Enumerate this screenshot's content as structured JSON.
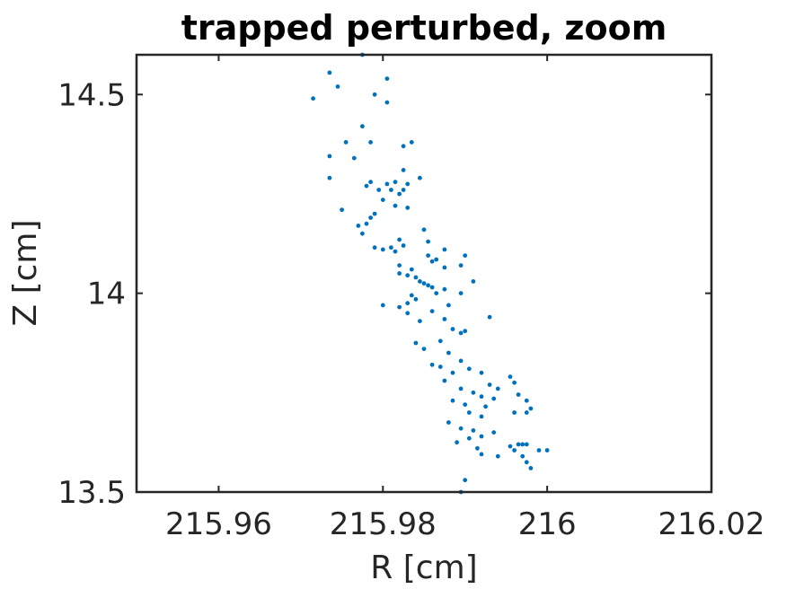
{
  "chart_data": {
    "type": "scatter",
    "title": "trapped perturbed, zoom",
    "xlabel": "R [cm]",
    "ylabel": "Z [cm]",
    "xlim": [
      215.95,
      216.02
    ],
    "ylim": [
      13.5,
      14.6
    ],
    "xticks": [
      215.96,
      215.98,
      216,
      216.02
    ],
    "xtick_labels": [
      "215.96",
      "215.98",
      "216",
      "216.02"
    ],
    "yticks": [
      13.5,
      14,
      14.5
    ],
    "ytick_labels": [
      "13.5",
      "14",
      "14.5"
    ],
    "grid": false,
    "box": true,
    "marker_color": "#0072BD",
    "series": [
      {
        "points": [
          [
            215.9775,
            14.6
          ],
          [
            215.9735,
            14.555
          ],
          [
            215.9805,
            14.54
          ],
          [
            215.9745,
            14.52
          ],
          [
            215.9715,
            14.49
          ],
          [
            215.979,
            14.5
          ],
          [
            215.9805,
            14.48
          ],
          [
            215.9775,
            14.42
          ],
          [
            215.9755,
            14.38
          ],
          [
            215.9785,
            14.38
          ],
          [
            215.9835,
            14.38
          ],
          [
            215.9825,
            14.37
          ],
          [
            215.9735,
            14.345
          ],
          [
            215.9765,
            14.34
          ],
          [
            215.9735,
            14.29
          ],
          [
            215.9825,
            14.31
          ],
          [
            215.9845,
            14.29
          ],
          [
            215.9785,
            14.28
          ],
          [
            215.9805,
            14.275
          ],
          [
            215.9815,
            14.28
          ],
          [
            215.983,
            14.275
          ],
          [
            215.978,
            14.27
          ],
          [
            215.9825,
            14.26
          ],
          [
            215.9795,
            14.26
          ],
          [
            215.981,
            14.26
          ],
          [
            215.982,
            14.25
          ],
          [
            215.98,
            14.235
          ],
          [
            215.9815,
            14.22
          ],
          [
            215.983,
            14.215
          ],
          [
            215.975,
            14.21
          ],
          [
            215.979,
            14.2
          ],
          [
            215.9785,
            14.19
          ],
          [
            215.977,
            14.17
          ],
          [
            215.978,
            14.175
          ],
          [
            215.9775,
            14.15
          ],
          [
            215.985,
            14.16
          ],
          [
            215.982,
            14.135
          ],
          [
            215.9855,
            14.13
          ],
          [
            215.9825,
            14.12
          ],
          [
            215.979,
            14.115
          ],
          [
            215.98,
            14.11
          ],
          [
            215.981,
            14.115
          ],
          [
            215.9815,
            14.105
          ],
          [
            215.9875,
            14.11
          ],
          [
            215.9855,
            14.095
          ],
          [
            215.9865,
            14.085
          ],
          [
            215.986,
            14.08
          ],
          [
            215.982,
            14.07
          ],
          [
            215.9875,
            14.065
          ],
          [
            215.9835,
            14.06
          ],
          [
            215.982,
            14.05
          ],
          [
            215.983,
            14.045
          ],
          [
            215.984,
            14.04
          ],
          [
            215.9845,
            14.03
          ],
          [
            215.985,
            14.025
          ],
          [
            215.9855,
            14.02
          ],
          [
            215.986,
            14.015
          ],
          [
            215.9875,
            14.01
          ],
          [
            215.9895,
            14.0
          ],
          [
            215.9865,
            14.0
          ],
          [
            215.9835,
            13.995
          ],
          [
            215.984,
            13.985
          ],
          [
            215.983,
            13.975
          ],
          [
            215.988,
            13.97
          ],
          [
            215.982,
            13.965
          ],
          [
            215.983,
            13.95
          ],
          [
            215.986,
            13.955
          ],
          [
            215.9875,
            13.935
          ],
          [
            215.9845,
            13.93
          ],
          [
            215.9885,
            13.91
          ],
          [
            215.99,
            13.905
          ],
          [
            215.9895,
            13.9
          ],
          [
            215.987,
            13.88
          ],
          [
            215.984,
            13.875
          ],
          [
            215.985,
            13.86
          ],
          [
            215.988,
            13.85
          ],
          [
            215.986,
            13.82
          ],
          [
            215.987,
            13.815
          ],
          [
            215.9885,
            13.8
          ],
          [
            215.9875,
            13.78
          ],
          [
            215.9895,
            13.76
          ],
          [
            215.991,
            13.75
          ],
          [
            215.992,
            13.74
          ],
          [
            215.9935,
            13.735
          ],
          [
            215.9885,
            13.73
          ],
          [
            215.99,
            13.72
          ],
          [
            215.9925,
            13.715
          ],
          [
            215.9905,
            13.7
          ],
          [
            215.992,
            13.69
          ],
          [
            215.988,
            13.675
          ],
          [
            215.9895,
            13.66
          ],
          [
            215.991,
            13.655
          ],
          [
            215.9935,
            13.65
          ],
          [
            215.992,
            13.64
          ],
          [
            215.9905,
            13.635
          ],
          [
            215.989,
            13.625
          ],
          [
            215.9915,
            13.61
          ],
          [
            215.992,
            13.595
          ],
          [
            215.99,
            13.53
          ],
          [
            215.9895,
            13.5
          ],
          [
            215.994,
            13.59
          ],
          [
            215.996,
            13.775
          ],
          [
            215.9965,
            13.745
          ],
          [
            215.9975,
            13.73
          ],
          [
            215.998,
            13.71
          ],
          [
            215.996,
            13.7
          ],
          [
            215.9975,
            13.7
          ],
          [
            215.9955,
            13.615
          ],
          [
            215.9965,
            13.62
          ],
          [
            215.997,
            13.62
          ],
          [
            215.9975,
            13.62
          ],
          [
            215.996,
            13.605
          ],
          [
            215.997,
            13.59
          ],
          [
            215.9975,
            13.575
          ],
          [
            215.998,
            13.56
          ],
          [
            215.999,
            13.605
          ],
          [
            216.0,
            13.605
          ],
          [
            215.993,
            13.77
          ],
          [
            215.994,
            13.76
          ],
          [
            215.9955,
            13.79
          ],
          [
            215.992,
            13.8
          ],
          [
            215.9895,
            13.83
          ],
          [
            215.9905,
            13.81
          ],
          [
            215.993,
            13.94
          ],
          [
            215.99,
            14.095
          ],
          [
            215.9895,
            14.07
          ],
          [
            215.991,
            14.03
          ],
          [
            215.98,
            13.97
          ]
        ]
      }
    ]
  }
}
